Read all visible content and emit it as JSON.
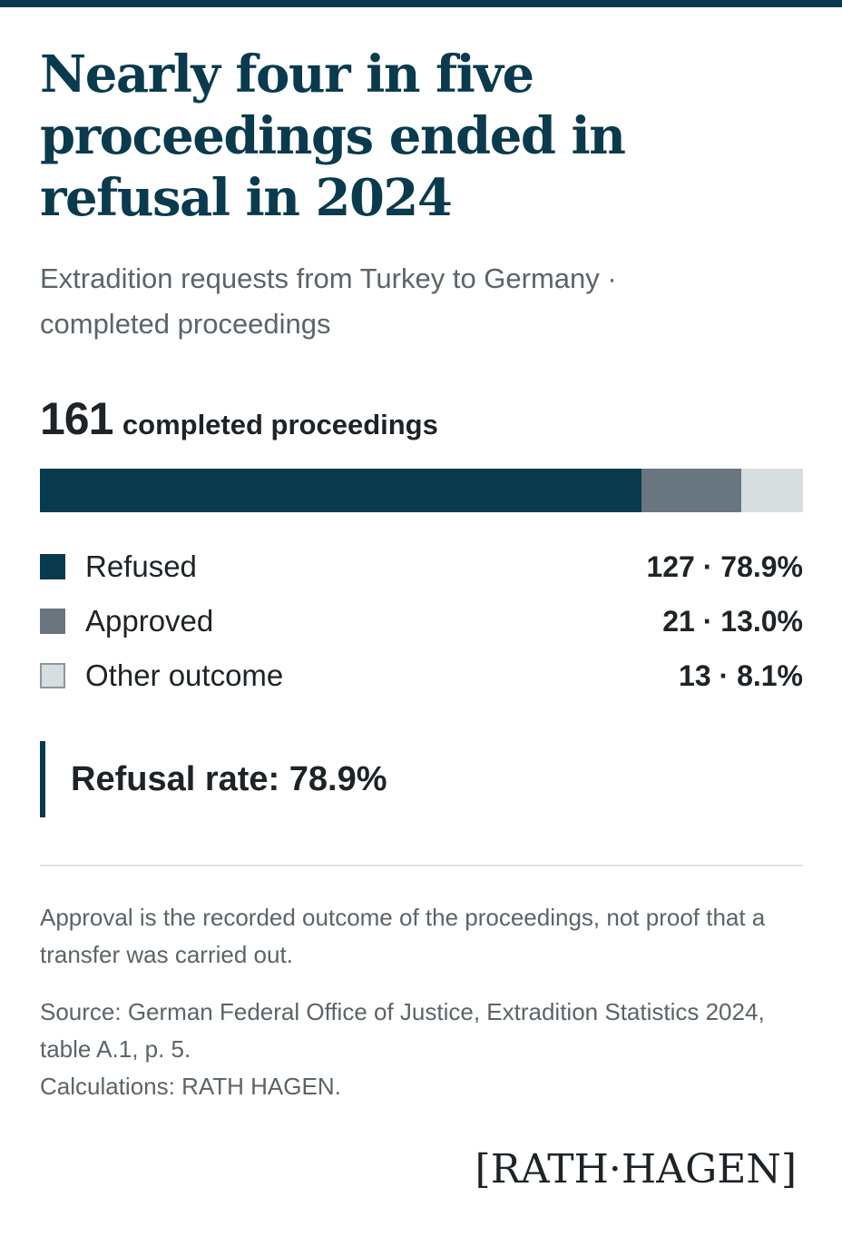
{
  "header": {
    "title": "Nearly four in five proceedings ended in refusal in 2024",
    "subtitle_line1": "Extradition requests from Turkey to Germany ·",
    "subtitle_line2": "completed proceedings"
  },
  "summary": {
    "total": "161",
    "total_label": "completed proceedings",
    "callout": "Refusal rate: 78.9%"
  },
  "chart_data": {
    "type": "bar",
    "orientation": "horizontal-stacked",
    "total": 161,
    "series": [
      {
        "name": "Refused",
        "value": 127,
        "percent": 78.9,
        "label": "127 · 78.9%",
        "color": "#0a3a4d"
      },
      {
        "name": "Approved",
        "value": 21,
        "percent": 13.0,
        "label": "21 · 13.0%",
        "color": "#6a767f"
      },
      {
        "name": "Other outcome",
        "value": 13,
        "percent": 8.1,
        "label": "13 · 8.1%",
        "color": "#d6dee0"
      }
    ]
  },
  "footer": {
    "note": "Approval is the recorded outcome of the proceedings, not proof that a transfer was carried out.",
    "source_line1": "Source: German Federal Office of Justice, Extradition Statistics 2024, table A.1, p. 5.",
    "source_line2": "Calculations: RATH HAGEN.",
    "logo": "[RATH·HAGEN]"
  }
}
